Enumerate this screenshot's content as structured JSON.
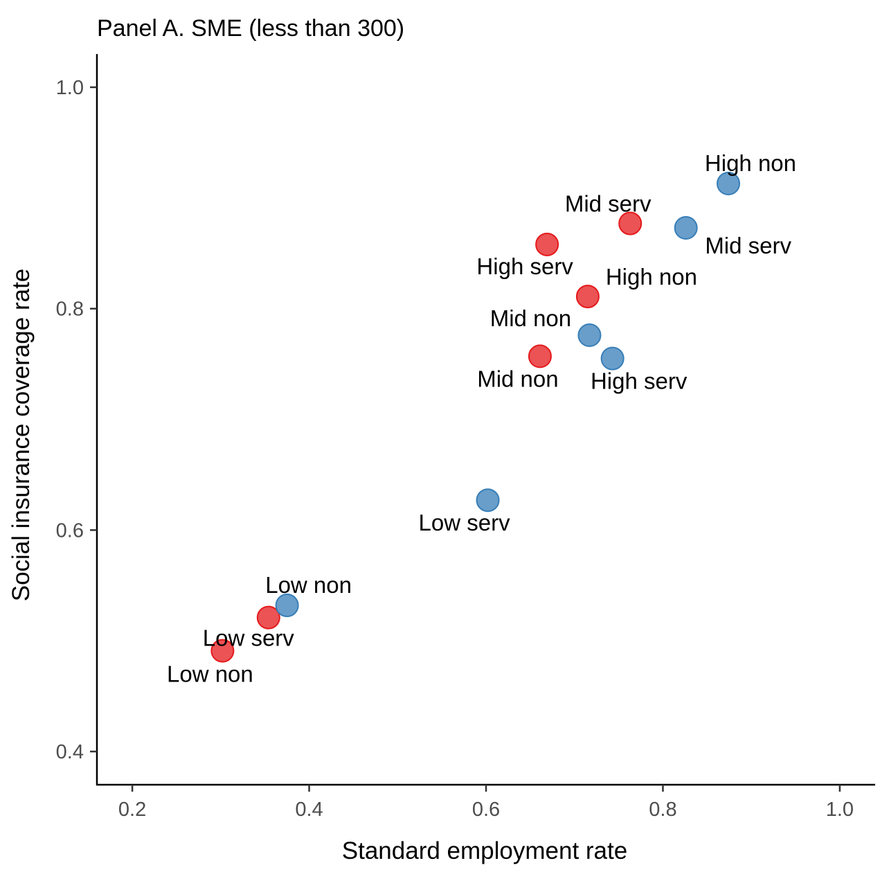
{
  "chart_data": {
    "type": "scatter",
    "title": "Panel A. SME (less than 300)",
    "xlabel": "Standard employment rate",
    "ylabel": "Social insurance coverage rate",
    "xlim": [
      0.16,
      1.04
    ],
    "ylim": [
      0.37,
      1.03
    ],
    "xticks": [
      "0.2",
      "0.4",
      "0.6",
      "0.8",
      "1.0"
    ],
    "yticks": [
      "0.4",
      "0.6",
      "0.8",
      "1.0"
    ],
    "grid": false,
    "legend": "none",
    "colors": {
      "red": "#e41a1c",
      "blue": "#377eb8"
    },
    "series": [
      {
        "color": "red",
        "points": [
          {
            "x": 0.302,
            "y": 0.491,
            "label": "Low non"
          },
          {
            "x": 0.354,
            "y": 0.521,
            "label": "Low serv"
          },
          {
            "x": 0.661,
            "y": 0.757,
            "label": "Mid non"
          },
          {
            "x": 0.669,
            "y": 0.858,
            "label": "High serv"
          },
          {
            "x": 0.715,
            "y": 0.811,
            "label": "High non"
          },
          {
            "x": 0.763,
            "y": 0.877,
            "label": "Mid serv"
          }
        ]
      },
      {
        "color": "blue",
        "points": [
          {
            "x": 0.375,
            "y": 0.532,
            "label": "Low non"
          },
          {
            "x": 0.602,
            "y": 0.627,
            "label": "Low serv"
          },
          {
            "x": 0.717,
            "y": 0.776,
            "label": "Mid non"
          },
          {
            "x": 0.743,
            "y": 0.755,
            "label": "High serv"
          },
          {
            "x": 0.826,
            "y": 0.873,
            "label": "Mid serv"
          },
          {
            "x": 0.874,
            "y": 0.913,
            "label": "High non"
          }
        ]
      }
    ]
  }
}
